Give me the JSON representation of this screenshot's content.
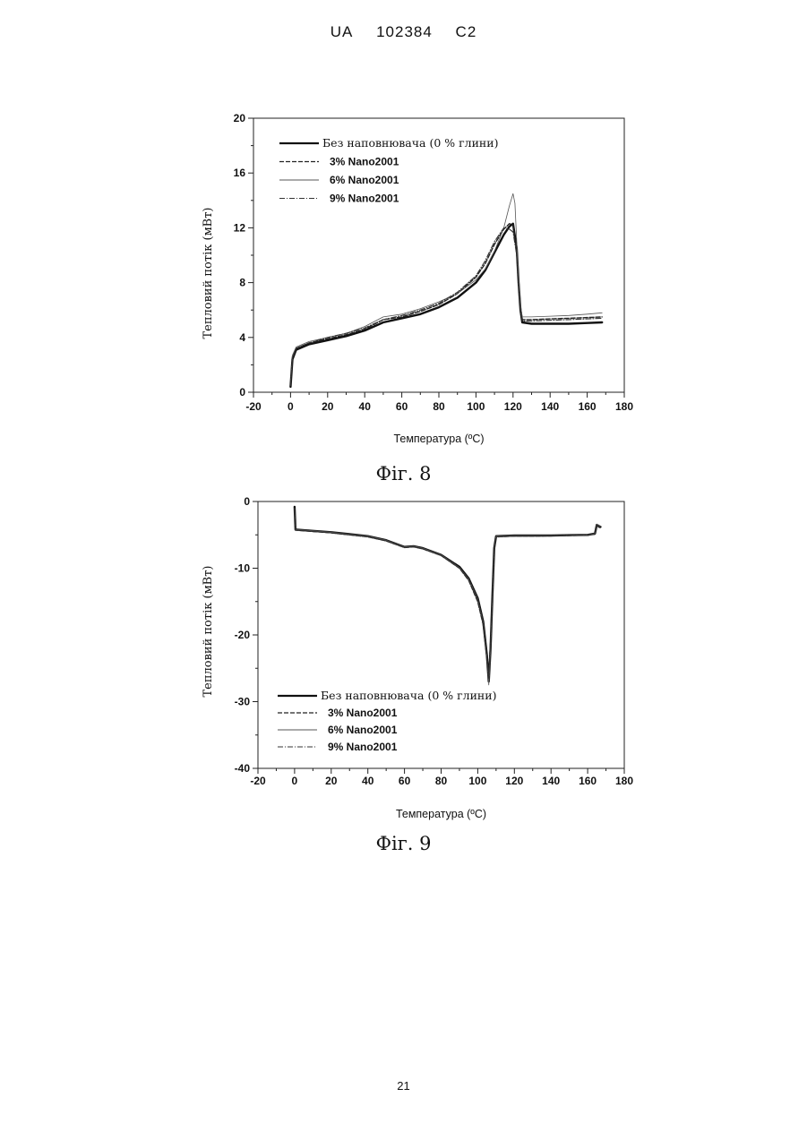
{
  "header": {
    "country": "UA",
    "number": "102384",
    "kind": "C2"
  },
  "page_number": "21",
  "figures": [
    {
      "caption": "Фіг. 8"
    },
    {
      "caption": "Фіг. 9"
    }
  ],
  "chart_data": [
    {
      "type": "line",
      "title": "",
      "xlabel": "Температура (ºC)",
      "ylabel": "Тепловий потік   (мВт)",
      "xlim": [
        -20,
        180
      ],
      "ylim": [
        0,
        20
      ],
      "xticks": [
        -20,
        0,
        20,
        40,
        60,
        80,
        100,
        120,
        140,
        160,
        180
      ],
      "yticks": [
        0,
        4,
        8,
        12,
        16,
        20
      ],
      "legend_position": "top-left",
      "series": [
        {
          "name": "Без наповнювача (0 % глини)",
          "style": "solid",
          "points": [
            [
              0,
              0.4
            ],
            [
              1,
              2.4
            ],
            [
              3,
              3.1
            ],
            [
              10,
              3.5
            ],
            [
              20,
              3.8
            ],
            [
              30,
              4.1
            ],
            [
              40,
              4.5
            ],
            [
              50,
              5.1
            ],
            [
              60,
              5.4
            ],
            [
              70,
              5.7
            ],
            [
              80,
              6.2
            ],
            [
              90,
              6.9
            ],
            [
              100,
              8.0
            ],
            [
              105,
              8.9
            ],
            [
              110,
              10.2
            ],
            [
              115,
              11.5
            ],
            [
              118,
              12.1
            ],
            [
              120,
              12.3
            ],
            [
              122,
              10.5
            ],
            [
              123,
              8.0
            ],
            [
              124,
              6.0
            ],
            [
              125,
              5.1
            ],
            [
              130,
              5.0
            ],
            [
              140,
              5.0
            ],
            [
              150,
              5.0
            ],
            [
              160,
              5.05
            ],
            [
              168,
              5.1
            ]
          ]
        },
        {
          "name": "3% Nano2001",
          "style": "dashed",
          "points": [
            [
              0,
              0.5
            ],
            [
              1,
              2.6
            ],
            [
              3,
              3.2
            ],
            [
              10,
              3.6
            ],
            [
              20,
              3.9
            ],
            [
              30,
              4.2
            ],
            [
              40,
              4.6
            ],
            [
              50,
              5.3
            ],
            [
              60,
              5.5
            ],
            [
              70,
              5.9
            ],
            [
              80,
              6.4
            ],
            [
              90,
              7.2
            ],
            [
              100,
              8.4
            ],
            [
              105,
              9.4
            ],
            [
              110,
              10.8
            ],
            [
              115,
              11.9
            ],
            [
              118,
              12.3
            ],
            [
              120,
              12.2
            ],
            [
              122,
              10.3
            ],
            [
              123,
              8.0
            ],
            [
              124,
              6.2
            ],
            [
              125,
              5.3
            ],
            [
              130,
              5.3
            ],
            [
              140,
              5.35
            ],
            [
              150,
              5.4
            ],
            [
              160,
              5.45
            ],
            [
              168,
              5.5
            ]
          ]
        },
        {
          "name": "6% Nano2001",
          "style": "thin",
          "points": [
            [
              0,
              0.6
            ],
            [
              1,
              2.7
            ],
            [
              3,
              3.3
            ],
            [
              10,
              3.7
            ],
            [
              20,
              4.0
            ],
            [
              30,
              4.3
            ],
            [
              40,
              4.8
            ],
            [
              50,
              5.5
            ],
            [
              60,
              5.7
            ],
            [
              70,
              6.1
            ],
            [
              80,
              6.6
            ],
            [
              90,
              7.2
            ],
            [
              100,
              8.2
            ],
            [
              105,
              9.0
            ],
            [
              110,
              10.3
            ],
            [
              115,
              12.0
            ],
            [
              118,
              13.6
            ],
            [
              120,
              14.5
            ],
            [
              121,
              13.8
            ],
            [
              122,
              11.0
            ],
            [
              123,
              8.5
            ],
            [
              124,
              6.4
            ],
            [
              125,
              5.5
            ],
            [
              130,
              5.5
            ],
            [
              140,
              5.55
            ],
            [
              150,
              5.6
            ],
            [
              160,
              5.7
            ],
            [
              168,
              5.8
            ]
          ]
        },
        {
          "name": "9% Nano2001",
          "style": "dashdot",
          "points": [
            [
              0,
              0.5
            ],
            [
              1,
              2.5
            ],
            [
              3,
              3.2
            ],
            [
              10,
              3.6
            ],
            [
              20,
              4.0
            ],
            [
              30,
              4.3
            ],
            [
              40,
              4.7
            ],
            [
              50,
              5.3
            ],
            [
              60,
              5.6
            ],
            [
              70,
              6.0
            ],
            [
              80,
              6.5
            ],
            [
              90,
              7.3
            ],
            [
              100,
              8.5
            ],
            [
              105,
              9.6
            ],
            [
              110,
              11.0
            ],
            [
              115,
              12.0
            ],
            [
              118,
              11.9
            ],
            [
              120,
              11.7
            ],
            [
              122,
              10.0
            ],
            [
              123,
              7.8
            ],
            [
              124,
              6.0
            ],
            [
              125,
              5.2
            ],
            [
              130,
              5.2
            ],
            [
              140,
              5.25
            ],
            [
              150,
              5.3
            ],
            [
              160,
              5.35
            ],
            [
              168,
              5.4
            ]
          ]
        }
      ]
    },
    {
      "type": "line",
      "title": "",
      "xlabel": "Температура (ºC)",
      "ylabel": "Тепловий потік   (мВт)",
      "xlim": [
        -20,
        180
      ],
      "ylim": [
        -40,
        0
      ],
      "xticks": [
        -20,
        0,
        20,
        40,
        60,
        80,
        100,
        120,
        140,
        160,
        180
      ],
      "yticks": [
        -40,
        -30,
        -20,
        -10,
        0
      ],
      "legend_position": "bottom-left",
      "series": [
        {
          "name": "Без наповнювача (0 % глини)",
          "style": "solid",
          "points": [
            [
              0,
              -0.8
            ],
            [
              0.5,
              -4.2
            ],
            [
              10,
              -4.4
            ],
            [
              20,
              -4.6
            ],
            [
              30,
              -4.9
            ],
            [
              40,
              -5.2
            ],
            [
              50,
              -5.8
            ],
            [
              60,
              -6.8
            ],
            [
              65,
              -6.7
            ],
            [
              70,
              -7.0
            ],
            [
              80,
              -8.0
            ],
            [
              90,
              -9.8
            ],
            [
              95,
              -11.5
            ],
            [
              100,
              -14.5
            ],
            [
              103,
              -18.0
            ],
            [
              105,
              -23.0
            ],
            [
              106,
              -27.0
            ],
            [
              107,
              -22.0
            ],
            [
              108,
              -14.0
            ],
            [
              109,
              -7.0
            ],
            [
              110,
              -5.2
            ],
            [
              120,
              -5.1
            ],
            [
              130,
              -5.1
            ],
            [
              140,
              -5.1
            ],
            [
              150,
              -5.05
            ],
            [
              160,
              -5.0
            ],
            [
              164,
              -4.8
            ],
            [
              165,
              -3.5
            ],
            [
              167,
              -3.8
            ]
          ]
        },
        {
          "name": "3% Nano2001",
          "style": "dashed",
          "points": [
            [
              0,
              -1.2
            ],
            [
              0.5,
              -4.3
            ],
            [
              10,
              -4.5
            ],
            [
              20,
              -4.7
            ],
            [
              30,
              -5.0
            ],
            [
              40,
              -5.3
            ],
            [
              50,
              -5.9
            ],
            [
              60,
              -6.9
            ],
            [
              65,
              -6.8
            ],
            [
              70,
              -7.1
            ],
            [
              80,
              -8.1
            ],
            [
              90,
              -10.0
            ],
            [
              95,
              -11.8
            ],
            [
              100,
              -15.0
            ],
            [
              103,
              -18.5
            ],
            [
              105,
              -23.5
            ],
            [
              106,
              -26.0
            ],
            [
              107,
              -21.0
            ],
            [
              108,
              -13.5
            ],
            [
              109,
              -7.0
            ],
            [
              110,
              -5.3
            ],
            [
              120,
              -5.2
            ],
            [
              130,
              -5.2
            ],
            [
              140,
              -5.15
            ],
            [
              150,
              -5.1
            ],
            [
              160,
              -5.05
            ],
            [
              164,
              -4.9
            ],
            [
              165,
              -3.8
            ],
            [
              167,
              -3.9
            ]
          ]
        },
        {
          "name": "6% Nano2001",
          "style": "thin",
          "points": [
            [
              0,
              -1.0
            ],
            [
              0.5,
              -4.2
            ],
            [
              10,
              -4.4
            ],
            [
              20,
              -4.6
            ],
            [
              30,
              -4.9
            ],
            [
              40,
              -5.2
            ],
            [
              50,
              -5.8
            ],
            [
              60,
              -6.8
            ],
            [
              65,
              -6.7
            ],
            [
              70,
              -7.0
            ],
            [
              80,
              -8.0
            ],
            [
              90,
              -9.9
            ],
            [
              95,
              -11.6
            ],
            [
              100,
              -14.6
            ],
            [
              103,
              -18.2
            ],
            [
              105,
              -23.2
            ],
            [
              106,
              -27.5
            ],
            [
              107,
              -22.5
            ],
            [
              108,
              -14.2
            ],
            [
              109,
              -7.1
            ],
            [
              110,
              -5.2
            ],
            [
              120,
              -5.1
            ],
            [
              130,
              -5.1
            ],
            [
              140,
              -5.1
            ],
            [
              150,
              -5.05
            ],
            [
              160,
              -5.0
            ],
            [
              164,
              -4.8
            ],
            [
              165,
              -3.4
            ],
            [
              167,
              -3.7
            ]
          ]
        },
        {
          "name": "9% Nano2001",
          "style": "dashdot",
          "points": [
            [
              0,
              -1.1
            ],
            [
              0.5,
              -4.3
            ],
            [
              10,
              -4.5
            ],
            [
              20,
              -4.7
            ],
            [
              30,
              -5.0
            ],
            [
              40,
              -5.3
            ],
            [
              50,
              -5.9
            ],
            [
              60,
              -6.9
            ],
            [
              65,
              -6.8
            ],
            [
              70,
              -7.1
            ],
            [
              80,
              -8.1
            ],
            [
              90,
              -10.0
            ],
            [
              95,
              -11.7
            ],
            [
              100,
              -14.8
            ],
            [
              103,
              -18.4
            ],
            [
              105,
              -23.4
            ],
            [
              106,
              -26.5
            ],
            [
              107,
              -21.5
            ],
            [
              108,
              -13.8
            ],
            [
              109,
              -7.0
            ],
            [
              110,
              -5.3
            ],
            [
              120,
              -5.2
            ],
            [
              130,
              -5.2
            ],
            [
              140,
              -5.15
            ],
            [
              150,
              -5.1
            ],
            [
              160,
              -5.05
            ],
            [
              164,
              -4.9
            ],
            [
              165,
              -3.7
            ],
            [
              167,
              -3.8
            ]
          ]
        }
      ]
    }
  ]
}
